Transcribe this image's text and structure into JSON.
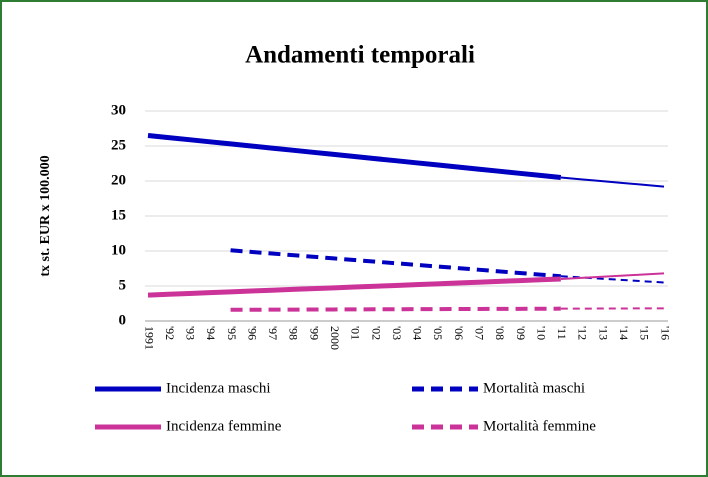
{
  "chart_data": {
    "type": "line",
    "title": "Andamenti temporali",
    "y_label": "tx st. EUR x 100.000",
    "categories": [
      "1991",
      "'92",
      "'93",
      "'94",
      "'95",
      "'96",
      "'97",
      "'98",
      "'99",
      "2000",
      "'01",
      "'02",
      "'03",
      "'04",
      "'05",
      "'06",
      "'07",
      "'08",
      "'09",
      "'10",
      "'11",
      "'12",
      "'13",
      "'14",
      "'15",
      "'16"
    ],
    "projection_from": "'11",
    "series": [
      {
        "name": "Incidenza maschi",
        "color": "#0000c0",
        "dashed": false,
        "values": [
          26.5,
          26.2,
          25.9,
          25.6,
          25.3,
          25.0,
          24.7,
          24.4,
          24.1,
          23.8,
          23.5,
          23.2,
          22.9,
          22.6,
          22.3,
          22.0,
          21.7,
          21.4,
          21.1,
          20.8,
          20.5,
          20.24,
          19.98,
          19.72,
          19.46,
          19.2
        ]
      },
      {
        "name": "Mortalità maschi",
        "color": "#0000c0",
        "dashed": true,
        "values": [
          null,
          null,
          null,
          null,
          10.1,
          9.87,
          9.64,
          9.41,
          9.18,
          8.94,
          8.71,
          8.48,
          8.25,
          8.02,
          7.79,
          7.56,
          7.33,
          7.09,
          6.86,
          6.63,
          6.4,
          6.22,
          6.04,
          5.86,
          5.68,
          5.5
        ]
      },
      {
        "name": "Incidenza femmine",
        "color": "#cc3399",
        "dashed": false,
        "values": [
          3.7,
          3.82,
          3.93,
          4.05,
          4.16,
          4.28,
          4.39,
          4.51,
          4.62,
          4.74,
          4.85,
          4.97,
          5.08,
          5.2,
          5.31,
          5.43,
          5.54,
          5.66,
          5.77,
          5.89,
          6.0,
          6.16,
          6.32,
          6.48,
          6.64,
          6.8
        ]
      },
      {
        "name": "Mortalità femmine",
        "color": "#cc3399",
        "dashed": true,
        "values": [
          null,
          null,
          null,
          null,
          1.6,
          1.61,
          1.62,
          1.63,
          1.64,
          1.65,
          1.66,
          1.67,
          1.68,
          1.69,
          1.7,
          1.71,
          1.72,
          1.73,
          1.74,
          1.75,
          1.76,
          1.77,
          1.78,
          1.79,
          1.8,
          1.8
        ]
      }
    ],
    "ylim": [
      0,
      30
    ],
    "yticks": [
      0,
      5,
      10,
      15,
      20,
      25,
      30
    ],
    "grid": true
  }
}
